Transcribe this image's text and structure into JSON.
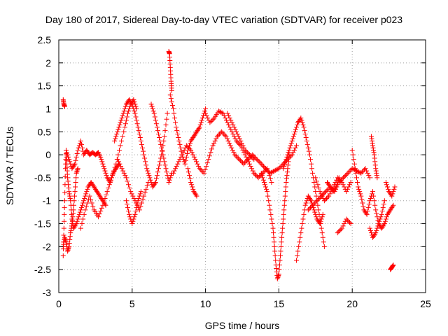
{
  "chart_data": {
    "type": "scatter",
    "title": "Day 180 of 2017, Sidereal Day-to-day VTEC variation (SDTVAR) for receiver p023",
    "xlabel": "GPS time / hours",
    "ylabel": "SDTVAR / TECUs",
    "xlim": [
      0,
      25
    ],
    "ylim": [
      -3,
      2.5
    ],
    "x_ticks": [
      0,
      5,
      10,
      15,
      20,
      25
    ],
    "x_tick_labels": [
      "0",
      "5",
      "10",
      "15",
      "20",
      "25"
    ],
    "y_ticks": [
      2.5,
      2,
      1.5,
      1,
      0.5,
      0,
      -0.5,
      -1,
      -1.5,
      -2,
      -2.5,
      -3
    ],
    "y_tick_labels": [
      "2.5",
      "2",
      "1.5",
      "1",
      "0.5",
      "0",
      "-0.5",
      "-1",
      "-1.5",
      "-2",
      "-2.5",
      "-3"
    ],
    "grid": true,
    "marker": "+",
    "marker_color": "#ff0000",
    "series": [
      {
        "name": "SDTVAR",
        "tracks": [
          {
            "x": [
              0.3,
              0.35,
              0.4,
              0.45,
              0.5,
              0.55,
              0.6,
              0.7,
              0.8,
              0.9,
              1.0,
              1.2,
              1.4,
              1.6,
              1.8,
              2.0,
              2.2,
              2.4,
              2.6,
              2.8,
              3.0,
              3.2
            ],
            "y": [
              -2.2,
              -1.6,
              -1.0,
              -0.3,
              0.1,
              -0.2,
              -0.5,
              -0.8,
              -1.0,
              -1.4,
              -1.6,
              -1.5,
              -1.3,
              -1.1,
              -0.9,
              -0.7,
              -0.6,
              -0.7,
              -0.8,
              -0.9,
              -1.0,
              -1.1
            ]
          },
          {
            "x": [
              0.3,
              0.35,
              0.4
            ],
            "y": [
              1.2,
              1.1,
              1.05
            ]
          },
          {
            "x": [
              0.3,
              0.4,
              0.5,
              0.6,
              0.7,
              0.8,
              0.9,
              1.0,
              1.1,
              1.2,
              1.3
            ],
            "y": [
              -2.0,
              -1.8,
              -1.9,
              -2.1,
              -2.0,
              -1.7,
              -1.5,
              -1.2,
              -0.8,
              -0.4,
              -0.3
            ]
          },
          {
            "x": [
              0.5,
              0.7,
              0.9,
              1.1,
              1.3,
              1.5,
              1.7,
              1.9,
              2.1,
              2.3,
              2.5,
              2.7,
              2.9,
              3.1,
              3.3,
              3.5,
              3.7,
              3.9,
              4.1
            ],
            "y": [
              0.1,
              -0.1,
              -0.3,
              -0.2,
              0.1,
              0.3,
              0.0,
              0.1,
              0.0,
              0.05,
              0.0,
              0.05,
              -0.1,
              -0.3,
              -0.5,
              -0.6,
              -0.4,
              -0.3,
              -0.2
            ]
          },
          {
            "x": [
              1.5,
              1.8,
              2.1,
              2.4,
              2.7,
              3.0,
              3.3,
              3.6,
              3.9,
              4.2,
              4.5,
              4.7,
              4.9,
              5.1,
              5.3
            ],
            "y": [
              -1.6,
              -1.2,
              -0.9,
              -1.2,
              -1.35,
              -1.1,
              -0.8,
              -0.5,
              -0.2,
              0.2,
              0.6,
              0.9,
              1.1,
              1.2,
              1.0
            ]
          },
          {
            "x": [
              3.8,
              4.0,
              4.2,
              4.4,
              4.6,
              4.8,
              5.0,
              5.2,
              5.4,
              5.6,
              5.8,
              6.0,
              6.2,
              6.4,
              6.6,
              6.8,
              7.0,
              7.2,
              7.4
            ],
            "y": [
              0.3,
              0.5,
              0.7,
              0.9,
              1.1,
              1.2,
              1.1,
              0.9,
              0.6,
              0.3,
              0.0,
              -0.3,
              -0.5,
              -0.7,
              -0.6,
              -0.3,
              0.0,
              0.4,
              0.9
            ]
          },
          {
            "x": [
              4.0,
              4.3,
              4.6,
              4.9,
              5.2,
              5.5,
              5.8,
              6.1
            ],
            "y": [
              -0.1,
              -0.3,
              -0.5,
              -0.8,
              -1.0,
              -1.2,
              -0.9,
              -0.6
            ]
          },
          {
            "x": [
              4.6,
              4.8,
              5.0,
              5.2,
              5.4,
              5.6
            ],
            "y": [
              -1.0,
              -1.3,
              -1.5,
              -1.3,
              -1.0,
              -0.8
            ]
          },
          {
            "x": [
              6.3,
              6.5,
              6.7,
              6.9,
              7.1,
              7.3,
              7.5,
              7.7
            ],
            "y": [
              1.1,
              0.9,
              0.6,
              0.3,
              0.0,
              -0.3,
              -0.6,
              -0.4
            ]
          },
          {
            "x": [
              7.5,
              7.55,
              7.6,
              7.65,
              7.7
            ],
            "y": [
              2.25,
              2.2,
              1.9,
              1.6,
              1.4
            ]
          },
          {
            "x": [
              7.6,
              7.8,
              8.0,
              8.2,
              8.4,
              8.6,
              8.8,
              9.0,
              9.2,
              9.4,
              9.6,
              9.8,
              10.0
            ],
            "y": [
              1.3,
              1.0,
              0.6,
              0.3,
              0.0,
              -0.2,
              0.1,
              0.3,
              0.4,
              0.5,
              0.6,
              0.8,
              1.0
            ]
          },
          {
            "x": [
              7.8,
              8.1,
              8.4,
              8.7,
              9.0,
              9.3,
              9.6,
              9.9,
              10.2,
              10.5
            ],
            "y": [
              -0.4,
              -0.2,
              0.0,
              0.2,
              0.1,
              -0.1,
              -0.3,
              -0.4,
              -0.1,
              0.2
            ]
          },
          {
            "x": [
              8.8,
              9.0,
              9.2,
              9.4
            ],
            "y": [
              -0.3,
              -0.6,
              -0.8,
              -0.9
            ]
          },
          {
            "x": [
              10.0,
              10.3,
              10.6,
              10.9,
              11.2,
              11.5,
              11.8,
              12.1,
              12.4,
              12.7,
              13.0,
              13.3,
              13.6,
              13.9,
              14.2,
              14.5
            ],
            "y": [
              0.9,
              0.7,
              0.8,
              0.95,
              0.9,
              0.7,
              0.5,
              0.3,
              0.2,
              0.0,
              -0.2,
              -0.4,
              -0.5,
              -0.4,
              -0.3,
              -0.6
            ]
          },
          {
            "x": [
              10.5,
              10.8,
              11.1,
              11.4,
              11.7,
              12.0,
              12.3,
              12.6,
              12.9,
              13.2,
              13.5,
              13.8,
              14.1,
              14.4,
              14.7,
              15.0,
              15.3,
              15.6,
              15.9,
              16.2
            ],
            "y": [
              0.2,
              0.4,
              0.5,
              0.4,
              0.2,
              0.0,
              -0.1,
              -0.2,
              -0.1,
              0.0,
              -0.1,
              -0.2,
              -0.3,
              -0.4,
              -0.35,
              -0.3,
              -0.2,
              -0.1,
              0.0,
              0.2
            ]
          },
          {
            "x": [
              11.5,
              11.8,
              12.1,
              12.4,
              12.7,
              13.0,
              13.3
            ],
            "y": [
              0.9,
              0.7,
              0.5,
              0.3,
              0.1,
              0.0,
              -0.1
            ]
          },
          {
            "x": [
              13.8,
              14.0,
              14.2,
              14.4,
              14.6,
              14.7,
              14.8,
              14.9,
              15.0,
              15.1,
              15.2,
              15.3,
              15.4,
              15.5,
              15.6,
              15.7
            ],
            "y": [
              -0.4,
              -0.6,
              -0.8,
              -1.2,
              -1.6,
              -2.0,
              -2.4,
              -2.7,
              -2.6,
              -2.2,
              -1.8,
              -1.4,
              -1.0,
              -0.6,
              -0.3,
              0.0
            ]
          },
          {
            "x": [
              15.3,
              15.5,
              15.7,
              15.9,
              16.1,
              16.3,
              16.5,
              16.7,
              16.9,
              17.1,
              17.3,
              17.5,
              17.7,
              17.9,
              18.1
            ],
            "y": [
              -0.3,
              -0.1,
              0.1,
              0.3,
              0.5,
              0.7,
              0.8,
              0.6,
              0.3,
              0.0,
              -0.4,
              -0.8,
              -1.2,
              -1.6,
              -2.0
            ]
          },
          {
            "x": [
              16.2,
              16.4,
              16.6,
              16.8,
              17.0,
              17.2,
              17.4,
              17.6,
              17.8,
              18.0
            ],
            "y": [
              -2.3,
              -1.9,
              -1.5,
              -1.1,
              -0.9,
              -1.0,
              -1.2,
              -1.4,
              -1.5,
              -1.3
            ]
          },
          {
            "x": [
              17.0,
              17.3,
              17.6,
              17.9,
              18.2,
              18.5,
              18.8,
              19.1,
              19.4,
              19.7,
              20.0,
              20.3,
              20.6,
              20.9,
              21.2
            ],
            "y": [
              -1.2,
              -1.1,
              -1.0,
              -0.9,
              -0.8,
              -0.7,
              -0.8,
              -0.6,
              -0.5,
              -0.4,
              -0.3,
              -0.35,
              -0.4,
              -0.3,
              -0.5
            ]
          },
          {
            "x": [
              17.5,
              17.8,
              18.1,
              18.4,
              18.7,
              19.0,
              19.3,
              19.6,
              19.9
            ],
            "y": [
              -0.5,
              -0.8,
              -1.0,
              -0.9,
              -0.7,
              -0.5,
              -0.6,
              -0.8,
              -0.6
            ]
          },
          {
            "x": [
              18.3,
              18.5,
              18.7,
              18.9,
              19.1
            ],
            "y": [
              -0.6,
              -0.7,
              -0.8,
              -0.7,
              -0.5
            ]
          },
          {
            "x": [
              19.0,
              19.3,
              19.6,
              19.9
            ],
            "y": [
              -1.7,
              -1.6,
              -1.4,
              -1.5
            ]
          },
          {
            "x": [
              20.0,
              20.2,
              20.4,
              20.6,
              20.8,
              21.0,
              21.2,
              21.4,
              21.6,
              21.8,
              22.0,
              22.2,
              22.4,
              22.6,
              22.8
            ],
            "y": [
              0.1,
              -0.3,
              -0.7,
              -0.9,
              -1.2,
              -1.3,
              -1.0,
              -0.8,
              -1.2,
              -1.5,
              -1.6,
              -1.5,
              -1.3,
              -1.2,
              -1.1
            ]
          },
          {
            "x": [
              21.3,
              21.4,
              21.5,
              21.6,
              21.7
            ],
            "y": [
              0.4,
              0.2,
              0.0,
              -0.3,
              -0.5
            ]
          },
          {
            "x": [
              21.2,
              21.4,
              21.6,
              21.8,
              22.0,
              22.2
            ],
            "y": [
              -1.6,
              -1.8,
              -1.7,
              -1.5,
              -1.3,
              -1.0
            ]
          },
          {
            "x": [
              22.3,
              22.5,
              22.7,
              22.9
            ],
            "y": [
              -0.6,
              -0.8,
              -0.9,
              -0.7
            ]
          },
          {
            "x": [
              22.6,
              22.7,
              22.8
            ],
            "y": [
              -2.5,
              -2.45,
              -2.4
            ]
          }
        ]
      }
    ]
  }
}
